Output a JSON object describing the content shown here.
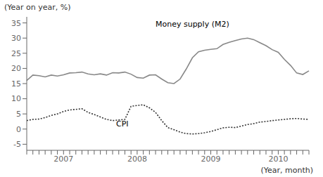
{
  "chart_data": {
    "type": "line",
    "ylabel": "(Year on year, %)",
    "xlabel": "(Year, month)",
    "categories": [
      null,
      null,
      null,
      null,
      null,
      null,
      "2007",
      null,
      null,
      null,
      null,
      null,
      null,
      null,
      null,
      null,
      null,
      null,
      "2008",
      null,
      null,
      null,
      null,
      null,
      null,
      null,
      null,
      null,
      null,
      null,
      "2009",
      null,
      null,
      null,
      null,
      null,
      null,
      null,
      null,
      null,
      null,
      "2010",
      null,
      null,
      null,
      null,
      null
    ],
    "series": [
      {
        "color": "#888888",
        "line_style": "solid",
        "values": [
          16.0,
          17.8,
          17.6,
          17.2,
          17.8,
          17.5,
          17.9,
          18.5,
          18.6,
          18.8,
          18.2,
          17.9,
          18.2,
          17.8,
          18.6,
          18.5,
          18.8,
          18.1,
          17.0,
          16.8,
          17.8,
          17.9,
          16.5,
          15.3,
          15.0,
          16.5,
          19.8,
          23.5,
          25.5,
          26.0,
          26.3,
          26.5,
          27.9,
          28.6,
          29.2,
          29.7,
          30.0,
          29.5,
          28.5,
          27.5,
          26.2,
          25.3,
          23.0,
          21.0,
          18.5,
          18.0,
          19.2
        ]
      },
      {
        "color": "#333333",
        "line_style": "dotted",
        "values": [
          2.8,
          3.2,
          3.3,
          3.8,
          4.5,
          5.0,
          5.8,
          6.3,
          6.5,
          6.7,
          5.5,
          4.8,
          4.0,
          3.2,
          2.8,
          3.0,
          3.2,
          7.5,
          7.8,
          8.0,
          7.0,
          5.5,
          2.8,
          0.5,
          -0.2,
          -1.0,
          -1.5,
          -1.6,
          -1.5,
          -1.2,
          -0.8,
          -0.2,
          0.4,
          0.6,
          0.5,
          1.0,
          1.5,
          1.8,
          2.3,
          2.5,
          2.8,
          3.0,
          3.2,
          3.4,
          3.5,
          3.3,
          3.2
        ]
      }
    ],
    "annotations": [
      {
        "text": "Money supply (M2)"
      },
      {
        "text": "CPI"
      }
    ],
    "ylim": [
      -7,
      37
    ],
    "yticks": [
      -5,
      0,
      5,
      10,
      15,
      20,
      25,
      30,
      35
    ],
    "grid": false
  }
}
